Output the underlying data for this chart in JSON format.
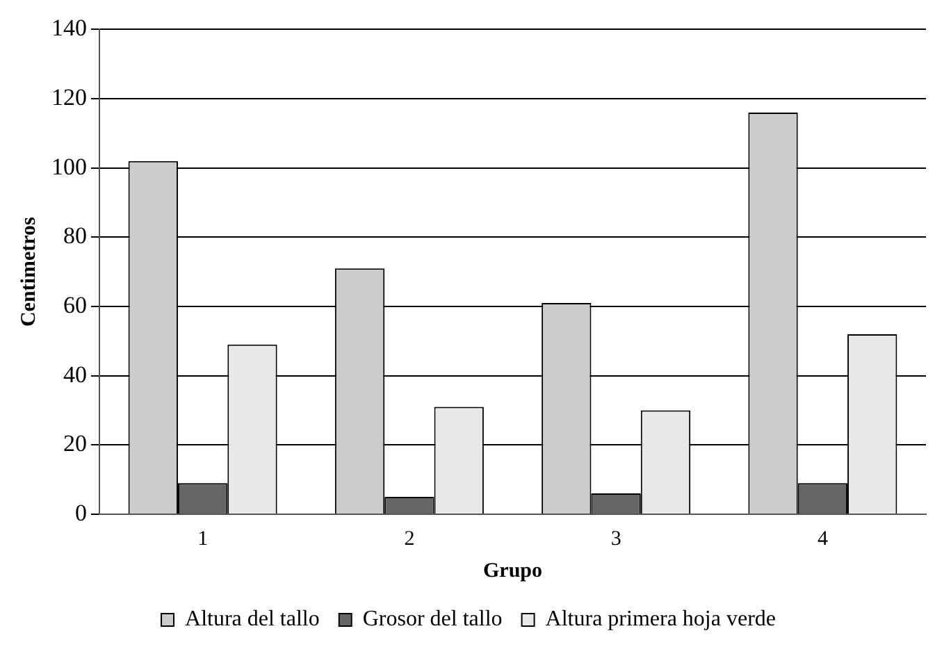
{
  "chart_data": {
    "type": "bar",
    "xlabel": "Grupo",
    "ylabel": "Centimetros",
    "categories": [
      "1",
      "2",
      "3",
      "4"
    ],
    "series": [
      {
        "name": "Altura del tallo",
        "color": "#cccccc",
        "values": [
          102,
          71,
          61,
          116
        ]
      },
      {
        "name": "Grosor del tallo",
        "color": "#666666",
        "values": [
          9,
          5,
          6,
          9
        ]
      },
      {
        "name": "Altura primera hoja verde",
        "color": "#e8e8e8",
        "values": [
          49,
          31,
          30,
          52
        ]
      }
    ],
    "ylim": [
      0,
      140
    ],
    "yticks": [
      0,
      20,
      40,
      60,
      80,
      100,
      120,
      140
    ],
    "grid": "y",
    "legend": "bottom"
  }
}
